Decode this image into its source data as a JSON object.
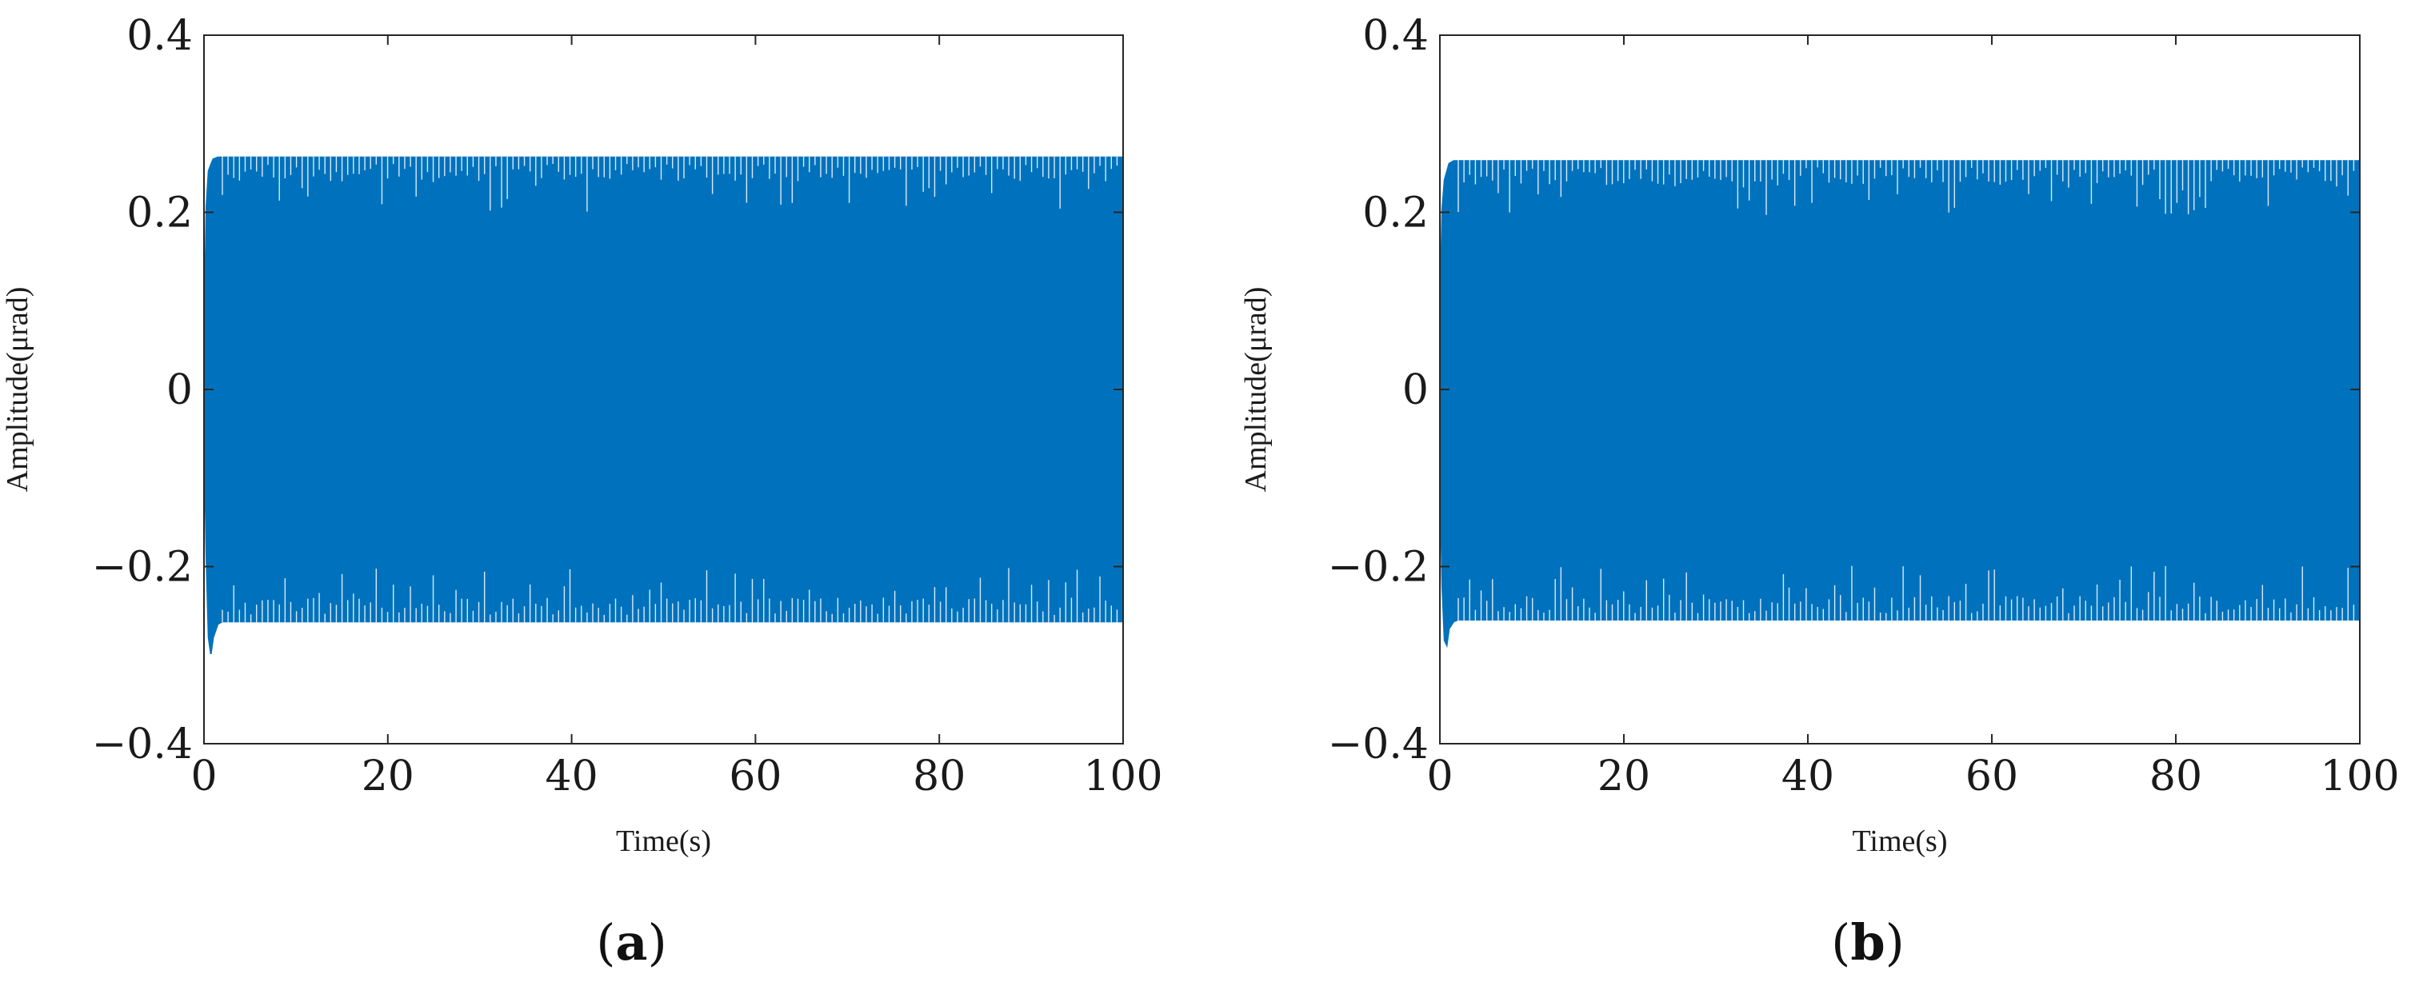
{
  "chart_data": [
    {
      "type": "line",
      "panel_label": "(a)",
      "xlabel": "Time(s)",
      "ylabel": "Amplitude(μrad)",
      "xlim": [
        0,
        100
      ],
      "ylim": [
        -0.4,
        0.4
      ],
      "x_ticks": [
        0,
        20,
        40,
        60,
        80,
        100
      ],
      "y_ticks": [
        -0.4,
        -0.2,
        0,
        0.2,
        0.4
      ],
      "x_tick_labels": [
        "0",
        "20",
        "40",
        "60",
        "80",
        "100"
      ],
      "y_tick_labels": [
        "−0.4",
        "−0.2",
        "0",
        "0.2",
        "0.4"
      ],
      "grid": false,
      "series": [
        {
          "color": "#0072bd",
          "envelope": {
            "x": [
              0,
              0.3,
              0.6,
              1,
              1.5,
              2,
              5,
              20,
              40,
              60,
              80,
              100
            ],
            "upper": [
              0.03,
              0.24,
              0.25,
              0.26,
              0.262,
              0.262,
              0.262,
              0.262,
              0.262,
              0.262,
              0.262,
              0.262
            ],
            "lower": [
              -0.02,
              -0.22,
              -0.31,
              -0.28,
              -0.265,
              -0.262,
              -0.262,
              -0.262,
              -0.262,
              -0.262,
              -0.262,
              -0.262
            ]
          }
        }
      ]
    },
    {
      "type": "line",
      "panel_label": "(b)",
      "xlabel": "Time(s)",
      "ylabel": "Amplitude(μrad)",
      "xlim": [
        0,
        100
      ],
      "ylim": [
        -0.4,
        0.4
      ],
      "x_ticks": [
        0,
        20,
        40,
        60,
        80,
        100
      ],
      "y_ticks": [
        -0.4,
        -0.2,
        0,
        0.2,
        0.4
      ],
      "x_tick_labels": [
        "0",
        "20",
        "40",
        "60",
        "80",
        "100"
      ],
      "y_tick_labels": [
        "−0.4",
        "−0.2",
        "0",
        "0.2",
        "0.4"
      ],
      "grid": false,
      "series": [
        {
          "color": "#0072bd",
          "envelope": {
            "x": [
              0,
              0.3,
              0.6,
              1,
              1.5,
              2,
              5,
              20,
              40,
              60,
              80,
              100
            ],
            "upper": [
              0.07,
              0.23,
              0.24,
              0.255,
              0.258,
              0.258,
              0.258,
              0.258,
              0.258,
              0.258,
              0.258,
              0.258
            ],
            "lower": [
              -0.08,
              -0.25,
              -0.3,
              -0.27,
              -0.262,
              -0.26,
              -0.26,
              -0.26,
              -0.26,
              -0.26,
              -0.26,
              -0.26
            ]
          }
        }
      ]
    }
  ]
}
